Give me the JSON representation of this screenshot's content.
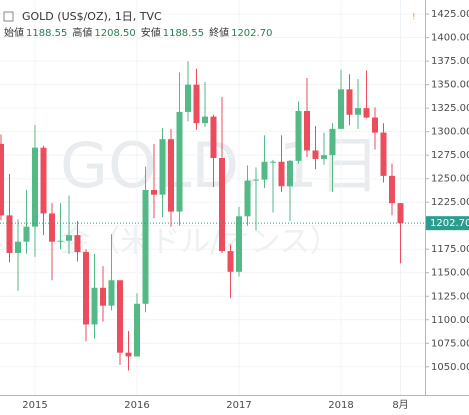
{
  "chart_data": {
    "type": "candlestick",
    "title": "GOLD (US$/OZ), 1日, TVC",
    "ohlc_header": [
      {
        "name": "始値",
        "value": "1188.55"
      },
      {
        "name": "高値",
        "value": "1208.50"
      },
      {
        "name": "安値",
        "value": "1188.55"
      },
      {
        "name": "終値",
        "value": "1202.70"
      }
    ],
    "watermark": [
      "GOLD, 1日",
      "金（米ドル/オンス）"
    ],
    "categories": [
      null,
      null,
      null,
      null,
      "2015",
      null,
      null,
      null,
      null,
      null,
      null,
      null,
      null,
      null,
      null,
      null,
      "2016",
      null,
      null,
      null,
      null,
      null,
      null,
      null,
      null,
      null,
      null,
      null,
      "2017",
      null,
      null,
      null,
      null,
      null,
      null,
      null,
      null,
      null,
      null,
      null,
      "2018",
      null,
      null,
      null,
      null,
      null,
      null,
      "8月"
    ],
    "open": [
      1287,
      1211,
      1171,
      1183,
      1199,
      1283,
      1213,
      1183,
      1184,
      1190,
      1172,
      1095,
      1134,
      1115,
      1142,
      1065,
      1061,
      1117,
      1238,
      1233,
      1292,
      1215,
      1321,
      1350,
      1309,
      1316,
      1272,
      1173,
      1151,
      1210,
      1248,
      1249,
      1268,
      1268,
      1242,
      1269,
      1322,
      1280,
      1271,
      1275,
      1303,
      1345,
      1318,
      1325,
      1315,
      1299,
      1253,
      1224
    ],
    "high": [
      1297,
      1255,
      1207,
      1238,
      1307,
      1285,
      1224,
      1224,
      1232,
      1205,
      1175,
      1170,
      1157,
      1191,
      1142,
      1088,
      1128,
      1263,
      1287,
      1304,
      1303,
      1363,
      1375,
      1367,
      1353,
      1318,
      1337,
      1180,
      1220,
      1264,
      1262,
      1296,
      1270,
      1296,
      1270,
      1332,
      1357,
      1306,
      1299,
      1309,
      1366,
      1361,
      1356,
      1365,
      1326,
      1309,
      1266,
      1224
    ],
    "low": [
      1206,
      1161,
      1131,
      1170,
      1167,
      1190,
      1142,
      1175,
      1170,
      1162,
      1077,
      1080,
      1098,
      1110,
      1052,
      1046,
      1062,
      1108,
      1208,
      1209,
      1199,
      1200,
      1311,
      1302,
      1305,
      1241,
      1171,
      1123,
      1146,
      1200,
      1195,
      1240,
      1214,
      1236,
      1205,
      1266,
      1273,
      1260,
      1265,
      1236,
      1303,
      1307,
      1303,
      1314,
      1281,
      1246,
      1211,
      1160
    ],
    "close": [
      1211,
      1171,
      1183,
      1199,
      1283,
      1213,
      1183,
      1184,
      1190,
      1172,
      1095,
      1134,
      1115,
      1142,
      1065,
      1061,
      1117,
      1238,
      1233,
      1292,
      1215,
      1321,
      1350,
      1309,
      1316,
      1272,
      1173,
      1151,
      1210,
      1248,
      1249,
      1268,
      1268,
      1242,
      1269,
      1322,
      1280,
      1271,
      1275,
      1303,
      1345,
      1318,
      1325,
      1315,
      1299,
      1253,
      1224,
      1202.7
    ],
    "up_color": "#53b987",
    "down_color": "#eb4d5c",
    "ylim": [
      1020,
      1440
    ],
    "yticks": [
      {
        "value": 1050,
        "label": "1050.00"
      },
      {
        "value": 1075,
        "label": "1075.00"
      },
      {
        "value": 1100,
        "label": "1100.00"
      },
      {
        "value": 1125,
        "label": "1125.00"
      },
      {
        "value": 1150,
        "label": "1150.00"
      },
      {
        "value": 1175,
        "label": "1175.00"
      },
      {
        "value": 1200,
        "label": "1200.00"
      },
      {
        "value": 1225,
        "label": "1225.00"
      },
      {
        "value": 1250,
        "label": "1250.00"
      },
      {
        "value": 1275,
        "label": "1275.00"
      },
      {
        "value": 1300,
        "label": "1300.00"
      },
      {
        "value": 1325,
        "label": "1325.00"
      },
      {
        "value": 1350,
        "label": "1350.00"
      },
      {
        "value": 1375,
        "label": "1375.00"
      },
      {
        "value": 1400,
        "label": "1400.00"
      },
      {
        "value": 1425,
        "label": "1425.00"
      }
    ],
    "last_price": {
      "value": 1202.7,
      "label": "1202.70"
    },
    "grid": true
  }
}
